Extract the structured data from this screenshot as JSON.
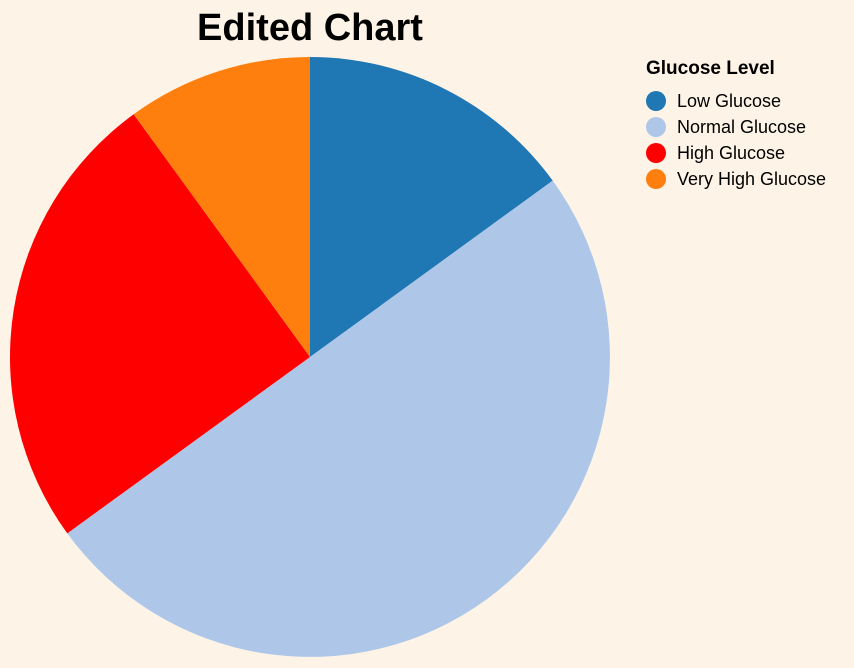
{
  "chart_data": {
    "type": "pie",
    "title": "Edited Chart",
    "legend_title": "Glucose Level",
    "legend_placement": "top-right",
    "categories": [
      "Low Glucose",
      "Normal Glucose",
      "High Glucose",
      "Very High Glucose"
    ],
    "values": [
      15,
      50,
      25,
      10
    ],
    "colors": [
      "#1f77b4",
      "#aec7e8",
      "#ff0000",
      "#ff7f0e"
    ]
  }
}
